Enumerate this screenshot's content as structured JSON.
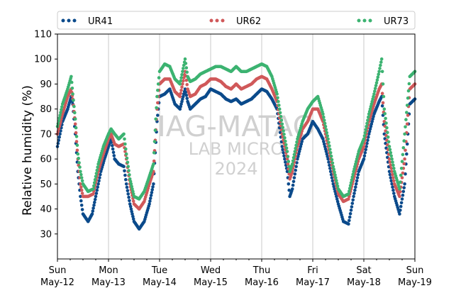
{
  "colors": {
    "UR41": "#0b4a8b",
    "UR62": "#d0595a",
    "UR73": "#3cb371"
  },
  "watermark": {
    "line1": "IAG-MATAO",
    "line2": "LAB MICRO",
    "line3": "2024"
  },
  "chart_data": {
    "type": "scatter",
    "title": "",
    "xlabel": "",
    "ylabel": "Relative humidity (%)",
    "ylim": [
      20,
      110
    ],
    "yticks": [
      30,
      40,
      50,
      60,
      70,
      80,
      90,
      100,
      110
    ],
    "xlim_days": [
      0,
      7
    ],
    "xticks": [
      {
        "day": 0,
        "line1": "Sun",
        "line2": "May-12"
      },
      {
        "day": 1,
        "line1": "Mon",
        "line2": "May-13"
      },
      {
        "day": 2,
        "line1": "Tue",
        "line2": "May-14"
      },
      {
        "day": 3,
        "line1": "Wed",
        "line2": "May-15"
      },
      {
        "day": 4,
        "line1": "Thu",
        "line2": "May-16"
      },
      {
        "day": 5,
        "line1": "Fri",
        "line2": "May-17"
      },
      {
        "day": 6,
        "line1": "Sat",
        "line2": "May-18"
      },
      {
        "day": 7,
        "line1": "Sun",
        "line2": "May-19"
      }
    ],
    "grid": "vertical",
    "legend_position": "top",
    "series": [
      {
        "name": "UR41",
        "points": [
          [
            0.0,
            65
          ],
          [
            0.1,
            75
          ],
          [
            0.2,
            80
          ],
          [
            0.27,
            85
          ],
          [
            0.3,
            82
          ],
          [
            0.35,
            70
          ],
          [
            0.4,
            55
          ],
          [
            0.45,
            45
          ],
          [
            0.5,
            38
          ],
          [
            0.6,
            35
          ],
          [
            0.68,
            38
          ],
          [
            0.75,
            45
          ],
          [
            0.85,
            55
          ],
          [
            0.92,
            60
          ],
          [
            1.0,
            65
          ],
          [
            1.05,
            68
          ],
          [
            1.12,
            60
          ],
          [
            1.2,
            58
          ],
          [
            1.3,
            57
          ],
          [
            1.35,
            50
          ],
          [
            1.42,
            42
          ],
          [
            1.5,
            35
          ],
          [
            1.6,
            32
          ],
          [
            1.7,
            35
          ],
          [
            1.8,
            42
          ],
          [
            1.88,
            50
          ],
          [
            1.95,
            75
          ],
          [
            2.0,
            85
          ],
          [
            2.1,
            86
          ],
          [
            2.2,
            88
          ],
          [
            2.3,
            82
          ],
          [
            2.4,
            80
          ],
          [
            2.5,
            88
          ],
          [
            2.55,
            83
          ],
          [
            2.6,
            80
          ],
          [
            2.7,
            82
          ],
          [
            2.8,
            84
          ],
          [
            2.9,
            85
          ],
          [
            3.0,
            88
          ],
          [
            3.1,
            87
          ],
          [
            3.2,
            86
          ],
          [
            3.3,
            84
          ],
          [
            3.4,
            83
          ],
          [
            3.5,
            84
          ],
          [
            3.6,
            82
          ],
          [
            3.7,
            83
          ],
          [
            3.8,
            84
          ],
          [
            3.9,
            86
          ],
          [
            4.0,
            88
          ],
          [
            4.1,
            87
          ],
          [
            4.2,
            84
          ],
          [
            4.3,
            80
          ],
          [
            4.4,
            65
          ],
          [
            4.5,
            55
          ],
          [
            4.55,
            45
          ],
          [
            4.6,
            48
          ],
          [
            4.7,
            60
          ],
          [
            4.8,
            68
          ],
          [
            4.9,
            70
          ],
          [
            5.0,
            75
          ],
          [
            5.1,
            72
          ],
          [
            5.2,
            68
          ],
          [
            5.3,
            60
          ],
          [
            5.4,
            50
          ],
          [
            5.5,
            42
          ],
          [
            5.6,
            35
          ],
          [
            5.7,
            34
          ],
          [
            5.8,
            45
          ],
          [
            5.9,
            55
          ],
          [
            6.0,
            60
          ],
          [
            6.1,
            70
          ],
          [
            6.2,
            78
          ],
          [
            6.3,
            83
          ],
          [
            6.35,
            85
          ],
          [
            6.4,
            70
          ],
          [
            6.5,
            55
          ],
          [
            6.6,
            45
          ],
          [
            6.7,
            38
          ],
          [
            6.8,
            50
          ],
          [
            6.9,
            82
          ],
          [
            7.0,
            84
          ]
        ]
      },
      {
        "name": "UR62",
        "points": [
          [
            0.0,
            70
          ],
          [
            0.1,
            78
          ],
          [
            0.2,
            85
          ],
          [
            0.27,
            88
          ],
          [
            0.3,
            84
          ],
          [
            0.35,
            74
          ],
          [
            0.4,
            60
          ],
          [
            0.45,
            50
          ],
          [
            0.5,
            45
          ],
          [
            0.6,
            45
          ],
          [
            0.7,
            46
          ],
          [
            0.8,
            55
          ],
          [
            0.9,
            62
          ],
          [
            1.0,
            68
          ],
          [
            1.05,
            70
          ],
          [
            1.12,
            66
          ],
          [
            1.2,
            65
          ],
          [
            1.3,
            66
          ],
          [
            1.35,
            60
          ],
          [
            1.42,
            50
          ],
          [
            1.5,
            42
          ],
          [
            1.6,
            40
          ],
          [
            1.7,
            43
          ],
          [
            1.8,
            50
          ],
          [
            1.88,
            55
          ],
          [
            1.95,
            80
          ],
          [
            2.0,
            90
          ],
          [
            2.1,
            92
          ],
          [
            2.2,
            92
          ],
          [
            2.3,
            87
          ],
          [
            2.4,
            85
          ],
          [
            2.5,
            95
          ],
          [
            2.55,
            88
          ],
          [
            2.6,
            85
          ],
          [
            2.7,
            86
          ],
          [
            2.8,
            89
          ],
          [
            2.9,
            90
          ],
          [
            3.0,
            92
          ],
          [
            3.1,
            92
          ],
          [
            3.2,
            91
          ],
          [
            3.3,
            89
          ],
          [
            3.4,
            88
          ],
          [
            3.5,
            90
          ],
          [
            3.6,
            88
          ],
          [
            3.7,
            89
          ],
          [
            3.8,
            90
          ],
          [
            3.9,
            92
          ],
          [
            4.0,
            93
          ],
          [
            4.1,
            92
          ],
          [
            4.2,
            88
          ],
          [
            4.3,
            83
          ],
          [
            4.4,
            70
          ],
          [
            4.5,
            60
          ],
          [
            4.55,
            52
          ],
          [
            4.6,
            55
          ],
          [
            4.7,
            65
          ],
          [
            4.8,
            72
          ],
          [
            4.9,
            75
          ],
          [
            5.0,
            80
          ],
          [
            5.1,
            80
          ],
          [
            5.2,
            75
          ],
          [
            5.3,
            65
          ],
          [
            5.4,
            55
          ],
          [
            5.5,
            46
          ],
          [
            5.6,
            43
          ],
          [
            5.7,
            44
          ],
          [
            5.8,
            52
          ],
          [
            5.9,
            60
          ],
          [
            6.0,
            65
          ],
          [
            6.1,
            75
          ],
          [
            6.2,
            82
          ],
          [
            6.3,
            88
          ],
          [
            6.35,
            90
          ],
          [
            6.4,
            75
          ],
          [
            6.5,
            60
          ],
          [
            6.6,
            50
          ],
          [
            6.7,
            45
          ],
          [
            6.8,
            60
          ],
          [
            6.9,
            88
          ],
          [
            7.0,
            90
          ]
        ]
      },
      {
        "name": "UR73",
        "points": [
          [
            0.0,
            73
          ],
          [
            0.1,
            82
          ],
          [
            0.2,
            88
          ],
          [
            0.27,
            93
          ],
          [
            0.3,
            86
          ],
          [
            0.35,
            76
          ],
          [
            0.4,
            62
          ],
          [
            0.45,
            55
          ],
          [
            0.5,
            50
          ],
          [
            0.6,
            47
          ],
          [
            0.7,
            48
          ],
          [
            0.8,
            58
          ],
          [
            0.9,
            65
          ],
          [
            1.0,
            70
          ],
          [
            1.05,
            72
          ],
          [
            1.12,
            70
          ],
          [
            1.2,
            68
          ],
          [
            1.3,
            70
          ],
          [
            1.35,
            62
          ],
          [
            1.42,
            52
          ],
          [
            1.5,
            45
          ],
          [
            1.6,
            44
          ],
          [
            1.7,
            47
          ],
          [
            1.8,
            53
          ],
          [
            1.88,
            58
          ],
          [
            1.95,
            85
          ],
          [
            2.0,
            95
          ],
          [
            2.1,
            98
          ],
          [
            2.2,
            97
          ],
          [
            2.3,
            92
          ],
          [
            2.4,
            90
          ],
          [
            2.5,
            100
          ],
          [
            2.55,
            93
          ],
          [
            2.6,
            91
          ],
          [
            2.7,
            92
          ],
          [
            2.8,
            94
          ],
          [
            2.9,
            95
          ],
          [
            3.0,
            96
          ],
          [
            3.1,
            97
          ],
          [
            3.2,
            97
          ],
          [
            3.3,
            96
          ],
          [
            3.4,
            95
          ],
          [
            3.5,
            97
          ],
          [
            3.6,
            95
          ],
          [
            3.7,
            95
          ],
          [
            3.8,
            96
          ],
          [
            3.9,
            97
          ],
          [
            4.0,
            98
          ],
          [
            4.1,
            97
          ],
          [
            4.2,
            93
          ],
          [
            4.3,
            86
          ],
          [
            4.4,
            74
          ],
          [
            4.5,
            63
          ],
          [
            4.55,
            55
          ],
          [
            4.6,
            58
          ],
          [
            4.7,
            68
          ],
          [
            4.8,
            75
          ],
          [
            4.9,
            80
          ],
          [
            5.0,
            83
          ],
          [
            5.1,
            85
          ],
          [
            5.2,
            78
          ],
          [
            5.3,
            68
          ],
          [
            5.4,
            57
          ],
          [
            5.5,
            48
          ],
          [
            5.6,
            45
          ],
          [
            5.7,
            46
          ],
          [
            5.8,
            55
          ],
          [
            5.9,
            63
          ],
          [
            6.0,
            68
          ],
          [
            6.1,
            78
          ],
          [
            6.2,
            86
          ],
          [
            6.3,
            95
          ],
          [
            6.35,
            100
          ],
          [
            6.4,
            80
          ],
          [
            6.5,
            65
          ],
          [
            6.6,
            55
          ],
          [
            6.7,
            48
          ],
          [
            6.8,
            70
          ],
          [
            6.9,
            93
          ],
          [
            7.0,
            95
          ]
        ]
      }
    ]
  }
}
